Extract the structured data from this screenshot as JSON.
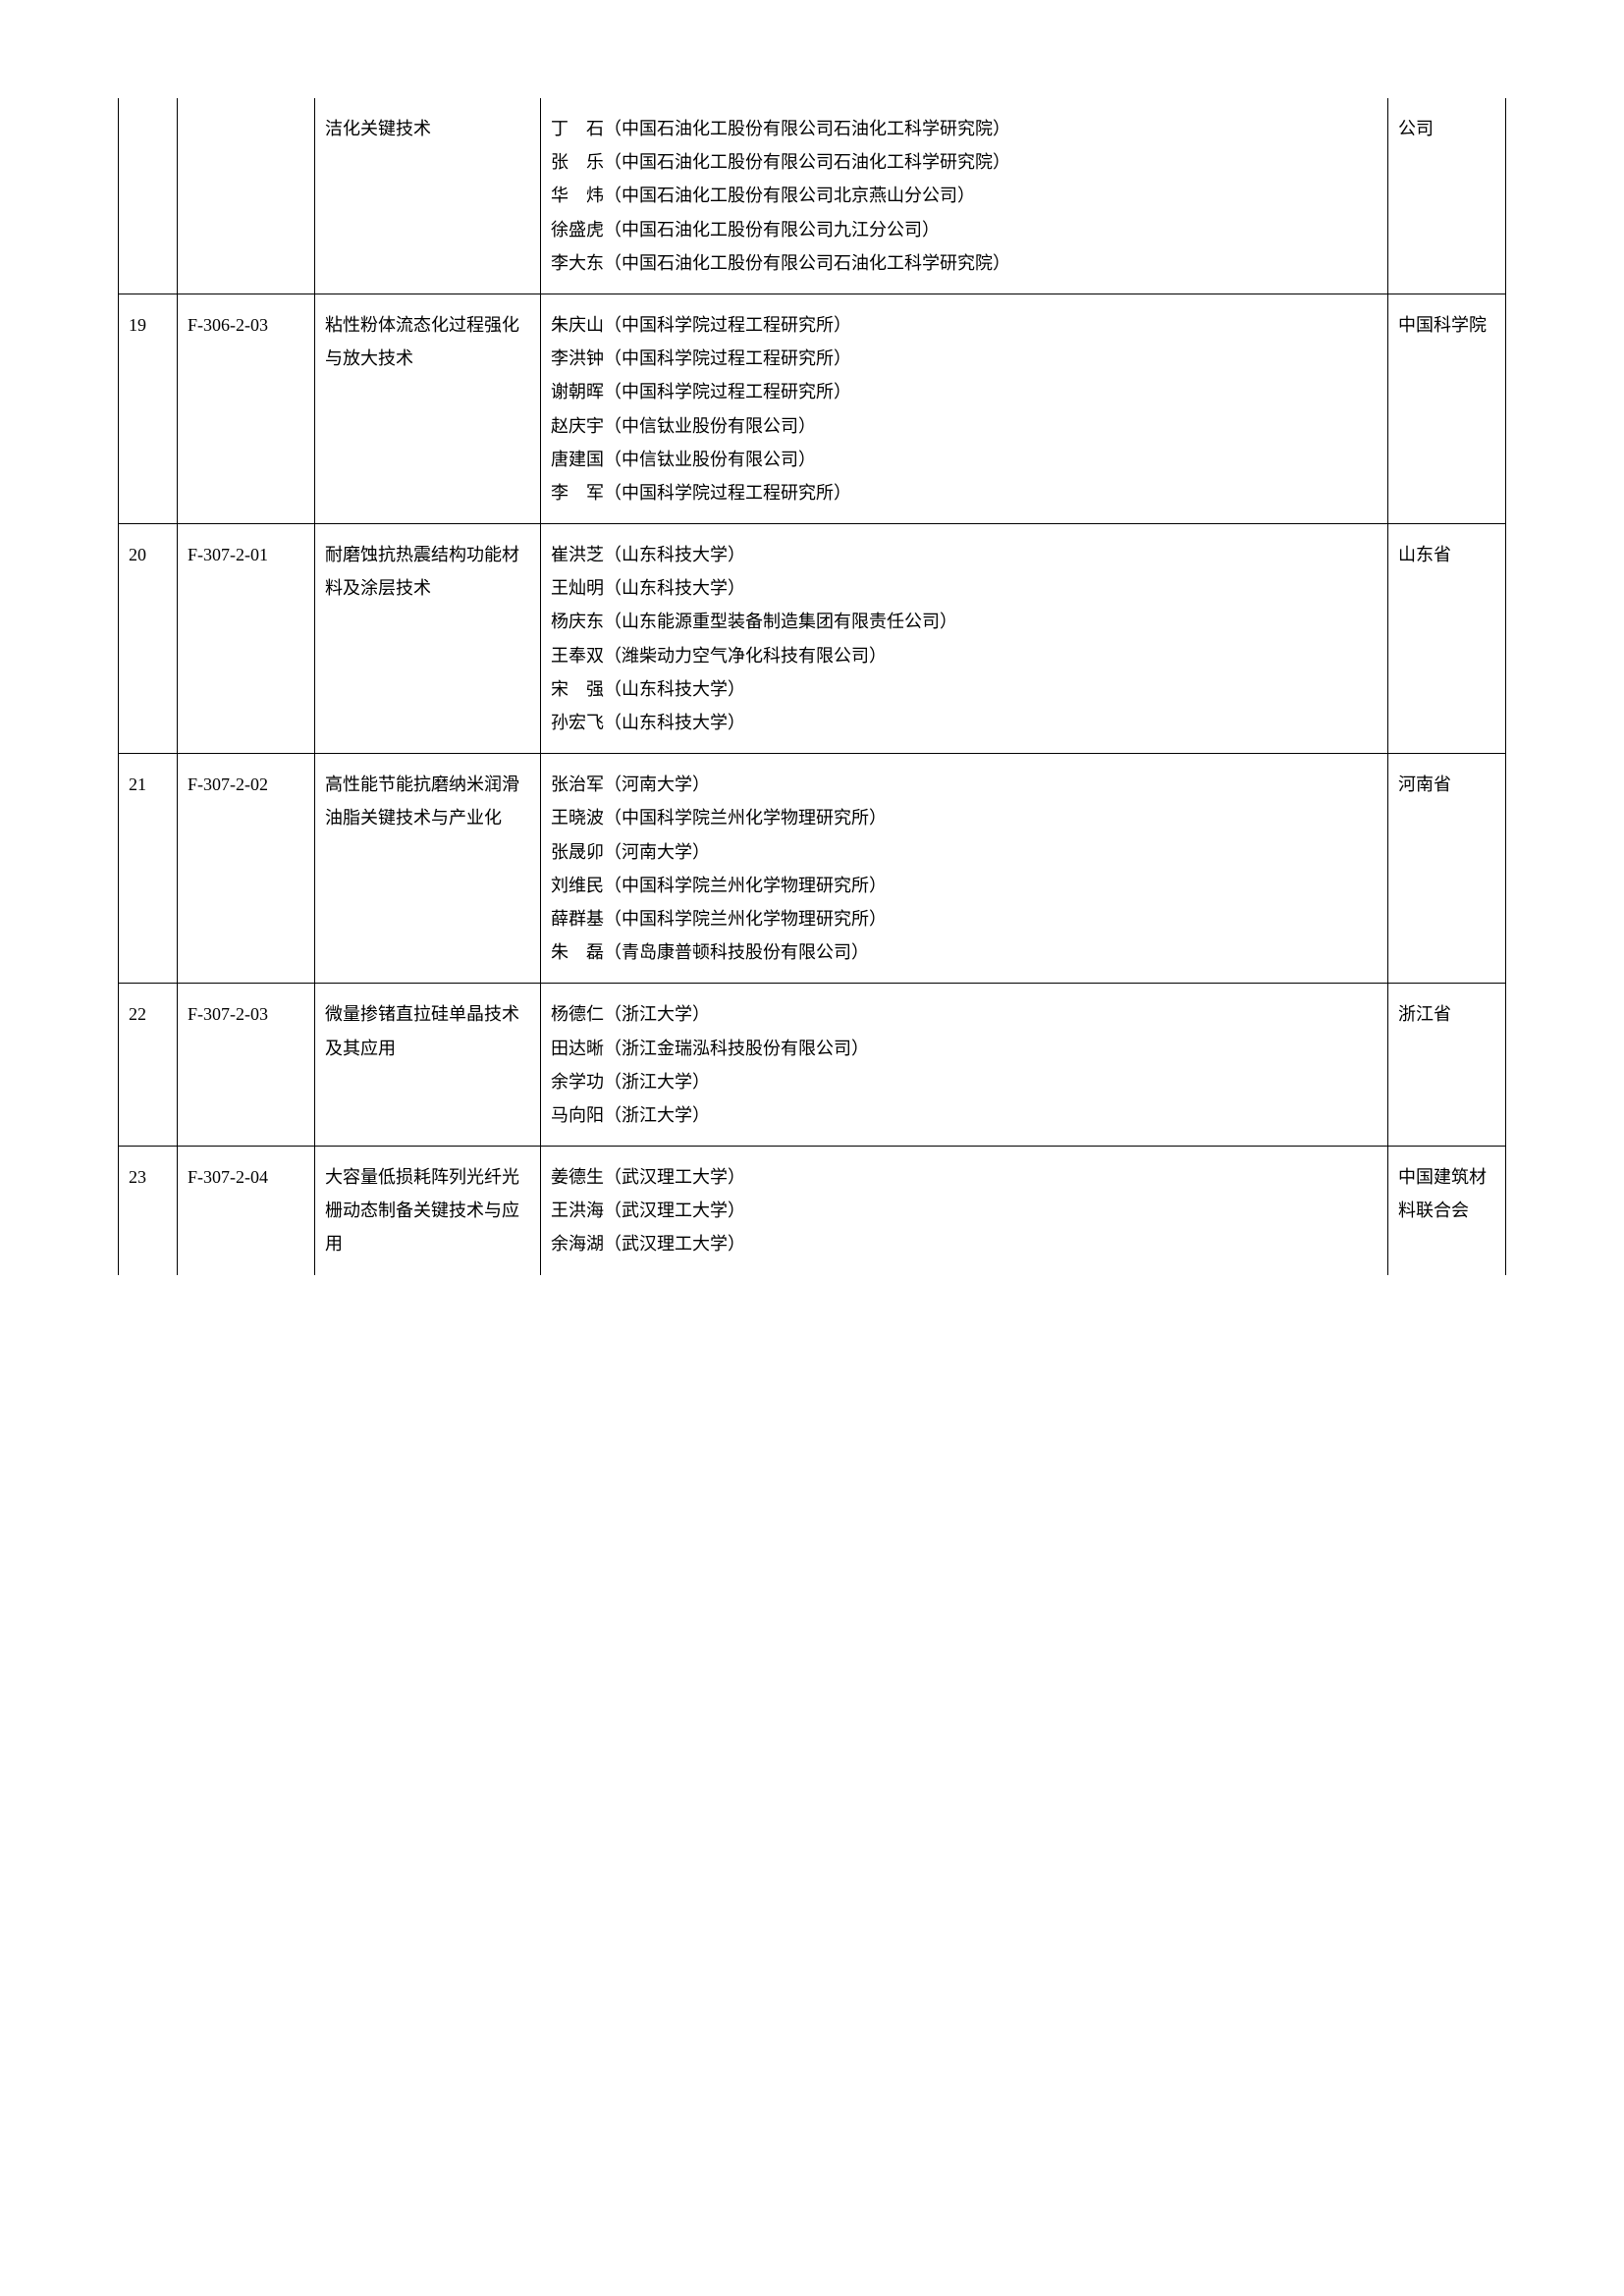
{
  "table": {
    "columns": [
      "index",
      "code",
      "project",
      "people",
      "unit"
    ],
    "rows": [
      {
        "index": "",
        "code": "",
        "project": "洁化关键技术",
        "people": "丁　石（中国石油化工股份有限公司石油化工科学研究院）\n张　乐（中国石油化工股份有限公司石油化工科学研究院）\n华　炜（中国石油化工股份有限公司北京燕山分公司）\n徐盛虎（中国石油化工股份有限公司九江分公司）\n李大东（中国石油化工股份有限公司石油化工科学研究院）",
        "unit": "公司"
      },
      {
        "index": "19",
        "code": "F-306-2-03",
        "project": "粘性粉体流态化过程强化与放大技术",
        "people": "朱庆山（中国科学院过程工程研究所）\n李洪钟（中国科学院过程工程研究所）\n谢朝晖（中国科学院过程工程研究所）\n赵庆宇（中信钛业股份有限公司）\n唐建国（中信钛业股份有限公司）\n李　军（中国科学院过程工程研究所）",
        "unit": "中国科学院"
      },
      {
        "index": "20",
        "code": "F-307-2-01",
        "project": "耐磨蚀抗热震结构功能材料及涂层技术",
        "people": "崔洪芝（山东科技大学）\n王灿明（山东科技大学）\n杨庆东（山东能源重型装备制造集团有限责任公司）\n王奉双（潍柴动力空气净化科技有限公司）\n宋　强（山东科技大学）\n孙宏飞（山东科技大学）",
        "unit": "山东省"
      },
      {
        "index": "21",
        "code": "F-307-2-02",
        "project": "高性能节能抗磨纳米润滑油脂关键技术与产业化",
        "people": "张治军（河南大学）\n王晓波（中国科学院兰州化学物理研究所）\n张晟卯（河南大学）\n刘维民（中国科学院兰州化学物理研究所）\n薛群基（中国科学院兰州化学物理研究所）\n朱　磊（青岛康普顿科技股份有限公司）",
        "unit": "河南省"
      },
      {
        "index": "22",
        "code": "F-307-2-03",
        "project": "微量掺锗直拉硅单晶技术及其应用",
        "people": "杨德仁（浙江大学）\n田达晰（浙江金瑞泓科技股份有限公司）\n余学功（浙江大学）\n马向阳（浙江大学）",
        "unit": "浙江省"
      },
      {
        "index": "23",
        "code": "F-307-2-04",
        "project": "大容量低损耗阵列光纤光栅动态制备关键技术与应用",
        "people": "姜德生（武汉理工大学）\n王洪海（武汉理工大学）\n余海湖（武汉理工大学）",
        "unit": "中国建筑材料联合会"
      }
    ]
  }
}
